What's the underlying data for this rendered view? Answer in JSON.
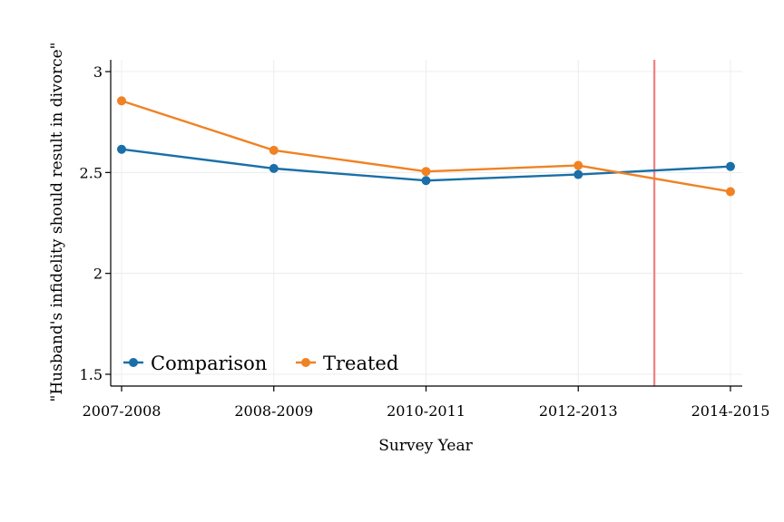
{
  "chart_data": {
    "type": "line",
    "title": "",
    "xlabel": "Survey Year",
    "ylabel": "\"Husband's infidelity should result in divorce\"",
    "categories": [
      "2007-2008",
      "2008-2009",
      "2010-2011",
      "2012-2013",
      "2014-2015"
    ],
    "ylim": [
      1.45,
      3.05
    ],
    "yticks": [
      1.5,
      2,
      2.5,
      3
    ],
    "ytick_labels": [
      "1.5",
      "2",
      "2.5",
      "3"
    ],
    "grid": true,
    "legend_position": "bottom-left inside",
    "vertical_line": {
      "x": 3.5,
      "color": "#f08080"
    },
    "series": [
      {
        "name": "Comparison",
        "color": "#1a6fa8",
        "values": [
          2.615,
          2.52,
          2.46,
          2.49,
          2.53
        ]
      },
      {
        "name": "Treated",
        "color": "#f08224",
        "values": [
          2.855,
          2.61,
          2.505,
          2.535,
          2.405
        ]
      }
    ]
  }
}
